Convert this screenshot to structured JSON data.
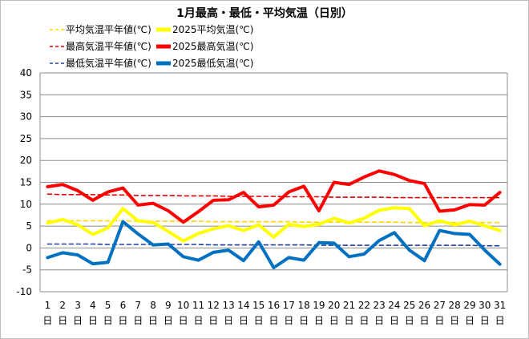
{
  "chart_data": {
    "type": "line",
    "title": "1月最高・最低・平均気温（日別）",
    "xlabel": "",
    "ylabel": "",
    "ylim": [
      -10,
      40
    ],
    "yticks": [
      40,
      35,
      30,
      25,
      20,
      15,
      10,
      5,
      0,
      -5,
      -10
    ],
    "grid": true,
    "legend_position": "top-left",
    "categories": [
      "1",
      "2",
      "3",
      "4",
      "5",
      "6",
      "7",
      "8",
      "9",
      "10",
      "11",
      "12",
      "13",
      "14",
      "15",
      "16",
      "17",
      "18",
      "19",
      "20",
      "21",
      "22",
      "23",
      "24",
      "25",
      "26",
      "27",
      "28",
      "29",
      "30",
      "31"
    ],
    "day_suffix": "日",
    "series": [
      {
        "name": "平均気温平年値(℃)",
        "color": "#ffd400",
        "style": "dashed",
        "width": 1.6,
        "values": [
          6.2,
          6.2,
          6.2,
          6.2,
          6.2,
          6.2,
          6.1,
          6.1,
          6.1,
          6.1,
          6.1,
          6.0,
          6.0,
          6.0,
          6.0,
          6.0,
          6.0,
          5.9,
          5.9,
          5.9,
          5.9,
          5.9,
          5.9,
          5.9,
          5.8,
          5.8,
          5.8,
          5.8,
          5.8,
          5.8,
          5.8
        ]
      },
      {
        "name": "2025平均気温(℃)",
        "color": "#ffff00",
        "style": "solid",
        "width": 4,
        "values": [
          5.7,
          6.5,
          5.3,
          3.1,
          4.6,
          9.0,
          6.2,
          5.8,
          3.8,
          1.6,
          3.3,
          4.4,
          5.1,
          4.0,
          5.3,
          2.5,
          5.4,
          4.9,
          5.4,
          6.8,
          5.7,
          6.8,
          8.6,
          9.2,
          9.0,
          5.1,
          6.2,
          5.3,
          6.1,
          5.1,
          4.0
        ]
      },
      {
        "name": "最高気温平年値(℃)",
        "color": "#e00000",
        "style": "dashed",
        "width": 1.6,
        "values": [
          12.3,
          12.2,
          12.2,
          12.2,
          12.1,
          12.1,
          12.0,
          12.0,
          12.0,
          11.9,
          11.9,
          11.9,
          11.8,
          11.8,
          11.8,
          11.8,
          11.7,
          11.7,
          11.7,
          11.6,
          11.6,
          11.6,
          11.6,
          11.5,
          11.5,
          11.5,
          11.5,
          11.5,
          11.5,
          11.5,
          11.5
        ]
      },
      {
        "name": "2025最高気温(℃)",
        "color": "#ff0000",
        "style": "solid",
        "width": 4,
        "values": [
          14.0,
          14.5,
          13.1,
          10.9,
          12.8,
          13.7,
          9.8,
          10.2,
          8.5,
          5.9,
          8.3,
          10.9,
          11.0,
          12.7,
          9.4,
          9.8,
          12.8,
          14.1,
          8.5,
          15.0,
          14.5,
          16.2,
          17.6,
          16.8,
          15.4,
          14.7,
          8.4,
          8.7,
          9.9,
          9.8,
          12.7
        ]
      },
      {
        "name": "最低気温平年値(℃)",
        "color": "#1f3ea0",
        "style": "dashed",
        "width": 1.6,
        "values": [
          0.9,
          0.9,
          0.9,
          0.9,
          0.8,
          0.8,
          0.8,
          0.8,
          0.8,
          0.8,
          0.8,
          0.7,
          0.7,
          0.7,
          0.7,
          0.7,
          0.7,
          0.7,
          0.6,
          0.6,
          0.6,
          0.6,
          0.6,
          0.6,
          0.6,
          0.6,
          0.6,
          0.6,
          0.6,
          0.5,
          0.5
        ]
      },
      {
        "name": "2025最低気温(℃)",
        "color": "#0070c0",
        "style": "solid",
        "width": 4,
        "values": [
          -2.2,
          -1.1,
          -1.6,
          -3.6,
          -3.3,
          6.0,
          3.2,
          0.7,
          0.9,
          -2.0,
          -2.8,
          -1.0,
          -0.5,
          -2.9,
          1.4,
          -4.5,
          -2.2,
          -2.8,
          1.2,
          1.1,
          -2.0,
          -1.4,
          1.7,
          3.5,
          -0.5,
          -2.9,
          4.0,
          3.3,
          3.1,
          -0.5,
          -3.7
        ]
      }
    ]
  }
}
